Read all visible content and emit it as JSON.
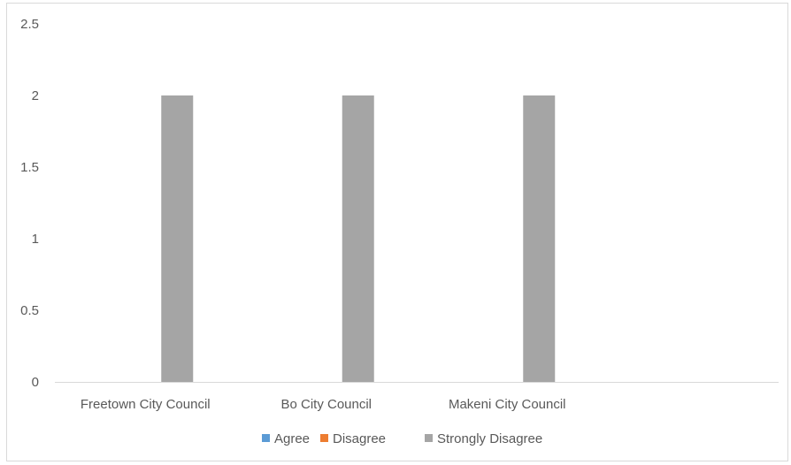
{
  "chart_data": {
    "type": "bar",
    "categories": [
      "Freetown City Council",
      "Bo City Council",
      "Makeni City Council",
      ""
    ],
    "series": [
      {
        "name": "Agree",
        "values": [
          0,
          0,
          0,
          0
        ],
        "color": "#5b9bd5"
      },
      {
        "name": "Disagree",
        "values": [
          0,
          0,
          0,
          0
        ],
        "color": "#ed7d31"
      },
      {
        "name": "Strongly Disagree",
        "values": [
          2,
          2,
          2,
          0
        ],
        "color": "#a5a5a5"
      }
    ],
    "y_ticks": [
      "0",
      "0.5",
      "1",
      "1.5",
      "2",
      "2.5"
    ],
    "ylim": [
      0,
      2.5
    ],
    "grid": false,
    "legend_position": "bottom",
    "title": "",
    "xlabel": "",
    "ylabel": ""
  }
}
